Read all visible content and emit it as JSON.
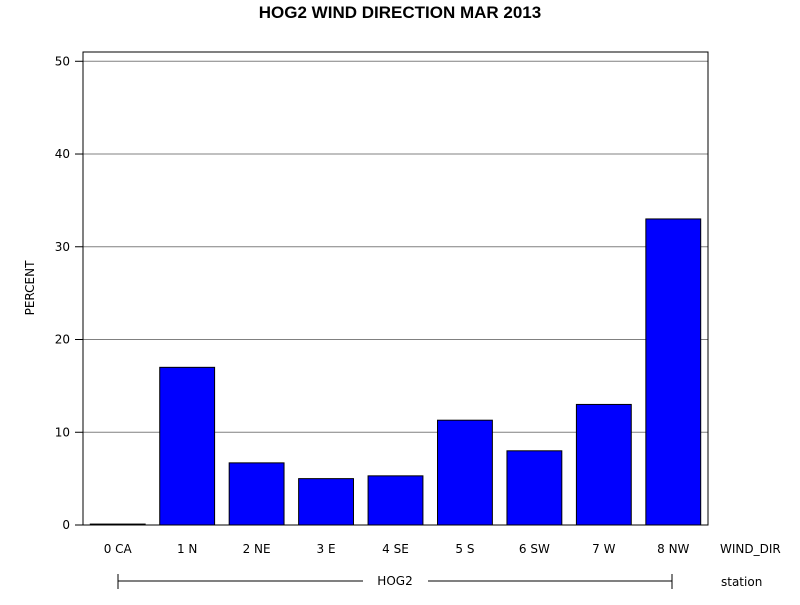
{
  "chart_data": {
    "type": "bar",
    "title": "HOG2 WIND DIRECTION MAR 2013",
    "ylabel": "PERCENT",
    "xlabel": "WIND_DIR",
    "group_label": "station",
    "group_name": "HOG2",
    "categories": [
      "0 CA",
      "1 N",
      "2 NE",
      "3 E",
      "4 SE",
      "5 S",
      "6 SW",
      "7 W",
      "8 NW"
    ],
    "values": [
      0.1,
      17.0,
      6.7,
      5.0,
      5.3,
      11.3,
      8.0,
      13.0,
      33.0
    ],
    "ylim": [
      0,
      51
    ],
    "yticks": [
      "0",
      "10",
      "20",
      "30",
      "40",
      "50"
    ],
    "grid": true,
    "bar_color": "#0000ff",
    "grid_color": "#808080"
  }
}
